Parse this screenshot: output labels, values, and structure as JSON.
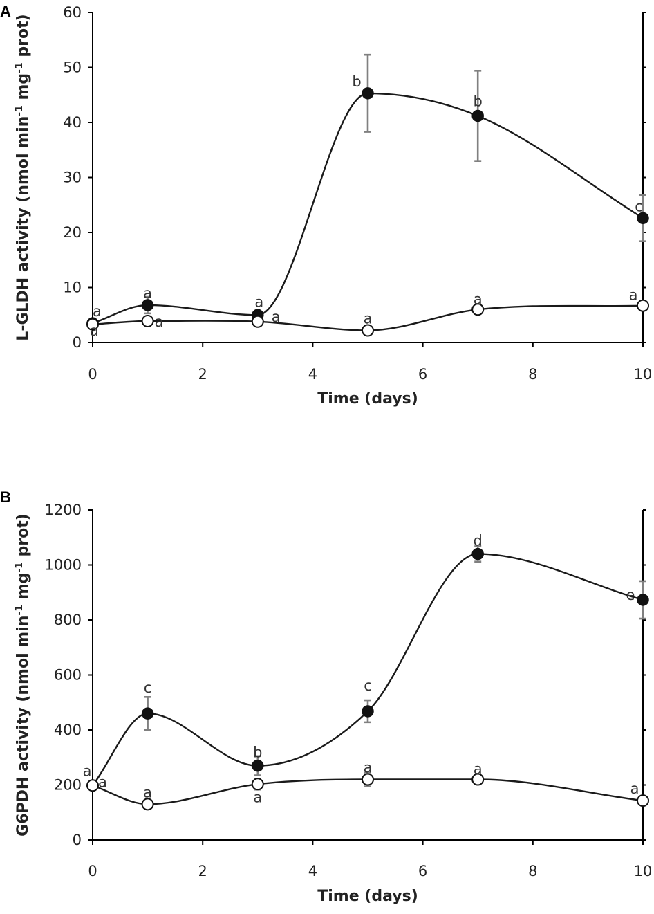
{
  "chart_data": [
    {
      "type": "line",
      "panel_label": "A",
      "title": "",
      "xlabel": "Time (days)",
      "ylabel_pre": "L-GLDH activity (nmol min",
      "ylabel_sup1": "-1",
      "ylabel_mid": " mg",
      "ylabel_sup2": "-1",
      "ylabel_post": " prot)",
      "xlim": [
        0,
        10
      ],
      "ylim": [
        0,
        60
      ],
      "xticks": [
        0,
        2,
        4,
        6,
        8,
        10
      ],
      "yticks": [
        0,
        10,
        20,
        30,
        40,
        50,
        60
      ],
      "xtick_labels": [
        "0",
        "2",
        "4",
        "6",
        "8",
        "10"
      ],
      "ytick_labels": [
        "0",
        "10",
        "20",
        "30",
        "40",
        "50",
        "60"
      ],
      "grid": false,
      "series": [
        {
          "name": "filled",
          "marker": "filled-circle",
          "x": [
            0,
            1,
            3,
            5,
            7,
            10
          ],
          "values": [
            3.5,
            6.8,
            5.0,
            45.3,
            41.2,
            22.6
          ],
          "errors": [
            0.5,
            1.5,
            0.8,
            7.0,
            8.2,
            4.2
          ],
          "letters": [
            "a",
            "a",
            "a",
            "b",
            "b",
            "c"
          ]
        },
        {
          "name": "open",
          "marker": "open-circle",
          "x": [
            0,
            1,
            3,
            5,
            7,
            10
          ],
          "values": [
            3.3,
            3.9,
            3.8,
            2.2,
            6.0,
            6.7
          ],
          "errors": [
            0.3,
            0.6,
            0.5,
            0.3,
            0.8,
            0.4
          ],
          "letters": [
            "a",
            "a",
            "a",
            "a",
            "a",
            "a"
          ]
        }
      ]
    },
    {
      "type": "line",
      "panel_label": "B",
      "title": "",
      "xlabel": "Time (days)",
      "ylabel_pre": "G6PDH activity (nmol min",
      "ylabel_sup1": "-1",
      "ylabel_mid": " mg",
      "ylabel_sup2": "-1",
      "ylabel_post": " prot)",
      "xlim": [
        0,
        10
      ],
      "ylim": [
        0,
        1200
      ],
      "xticks": [
        0,
        2,
        4,
        6,
        8,
        10
      ],
      "yticks": [
        0,
        200,
        400,
        600,
        800,
        1000,
        1200
      ],
      "xtick_labels": [
        "0",
        "2",
        "4",
        "6",
        "8",
        "10"
      ],
      "ytick_labels": [
        "0",
        "200",
        "400",
        "600",
        "800",
        "1000",
        "1200"
      ],
      "grid": false,
      "series": [
        {
          "name": "filled",
          "marker": "filled-circle",
          "x": [
            0,
            1,
            3,
            5,
            7,
            10
          ],
          "values": [
            198,
            460,
            270,
            468,
            1040,
            873
          ],
          "errors": [
            15,
            60,
            35,
            40,
            28,
            68
          ],
          "letters": [
            "a",
            "c",
            "b",
            "c",
            "d",
            "e"
          ]
        },
        {
          "name": "open",
          "marker": "open-circle",
          "x": [
            0,
            1,
            3,
            5,
            7,
            10
          ],
          "values": [
            198,
            130,
            203,
            220,
            220,
            143
          ],
          "errors": [
            10,
            12,
            20,
            25,
            15,
            12
          ],
          "letters": [
            "a",
            "a",
            "a",
            "a",
            "a",
            "a"
          ]
        }
      ]
    }
  ]
}
